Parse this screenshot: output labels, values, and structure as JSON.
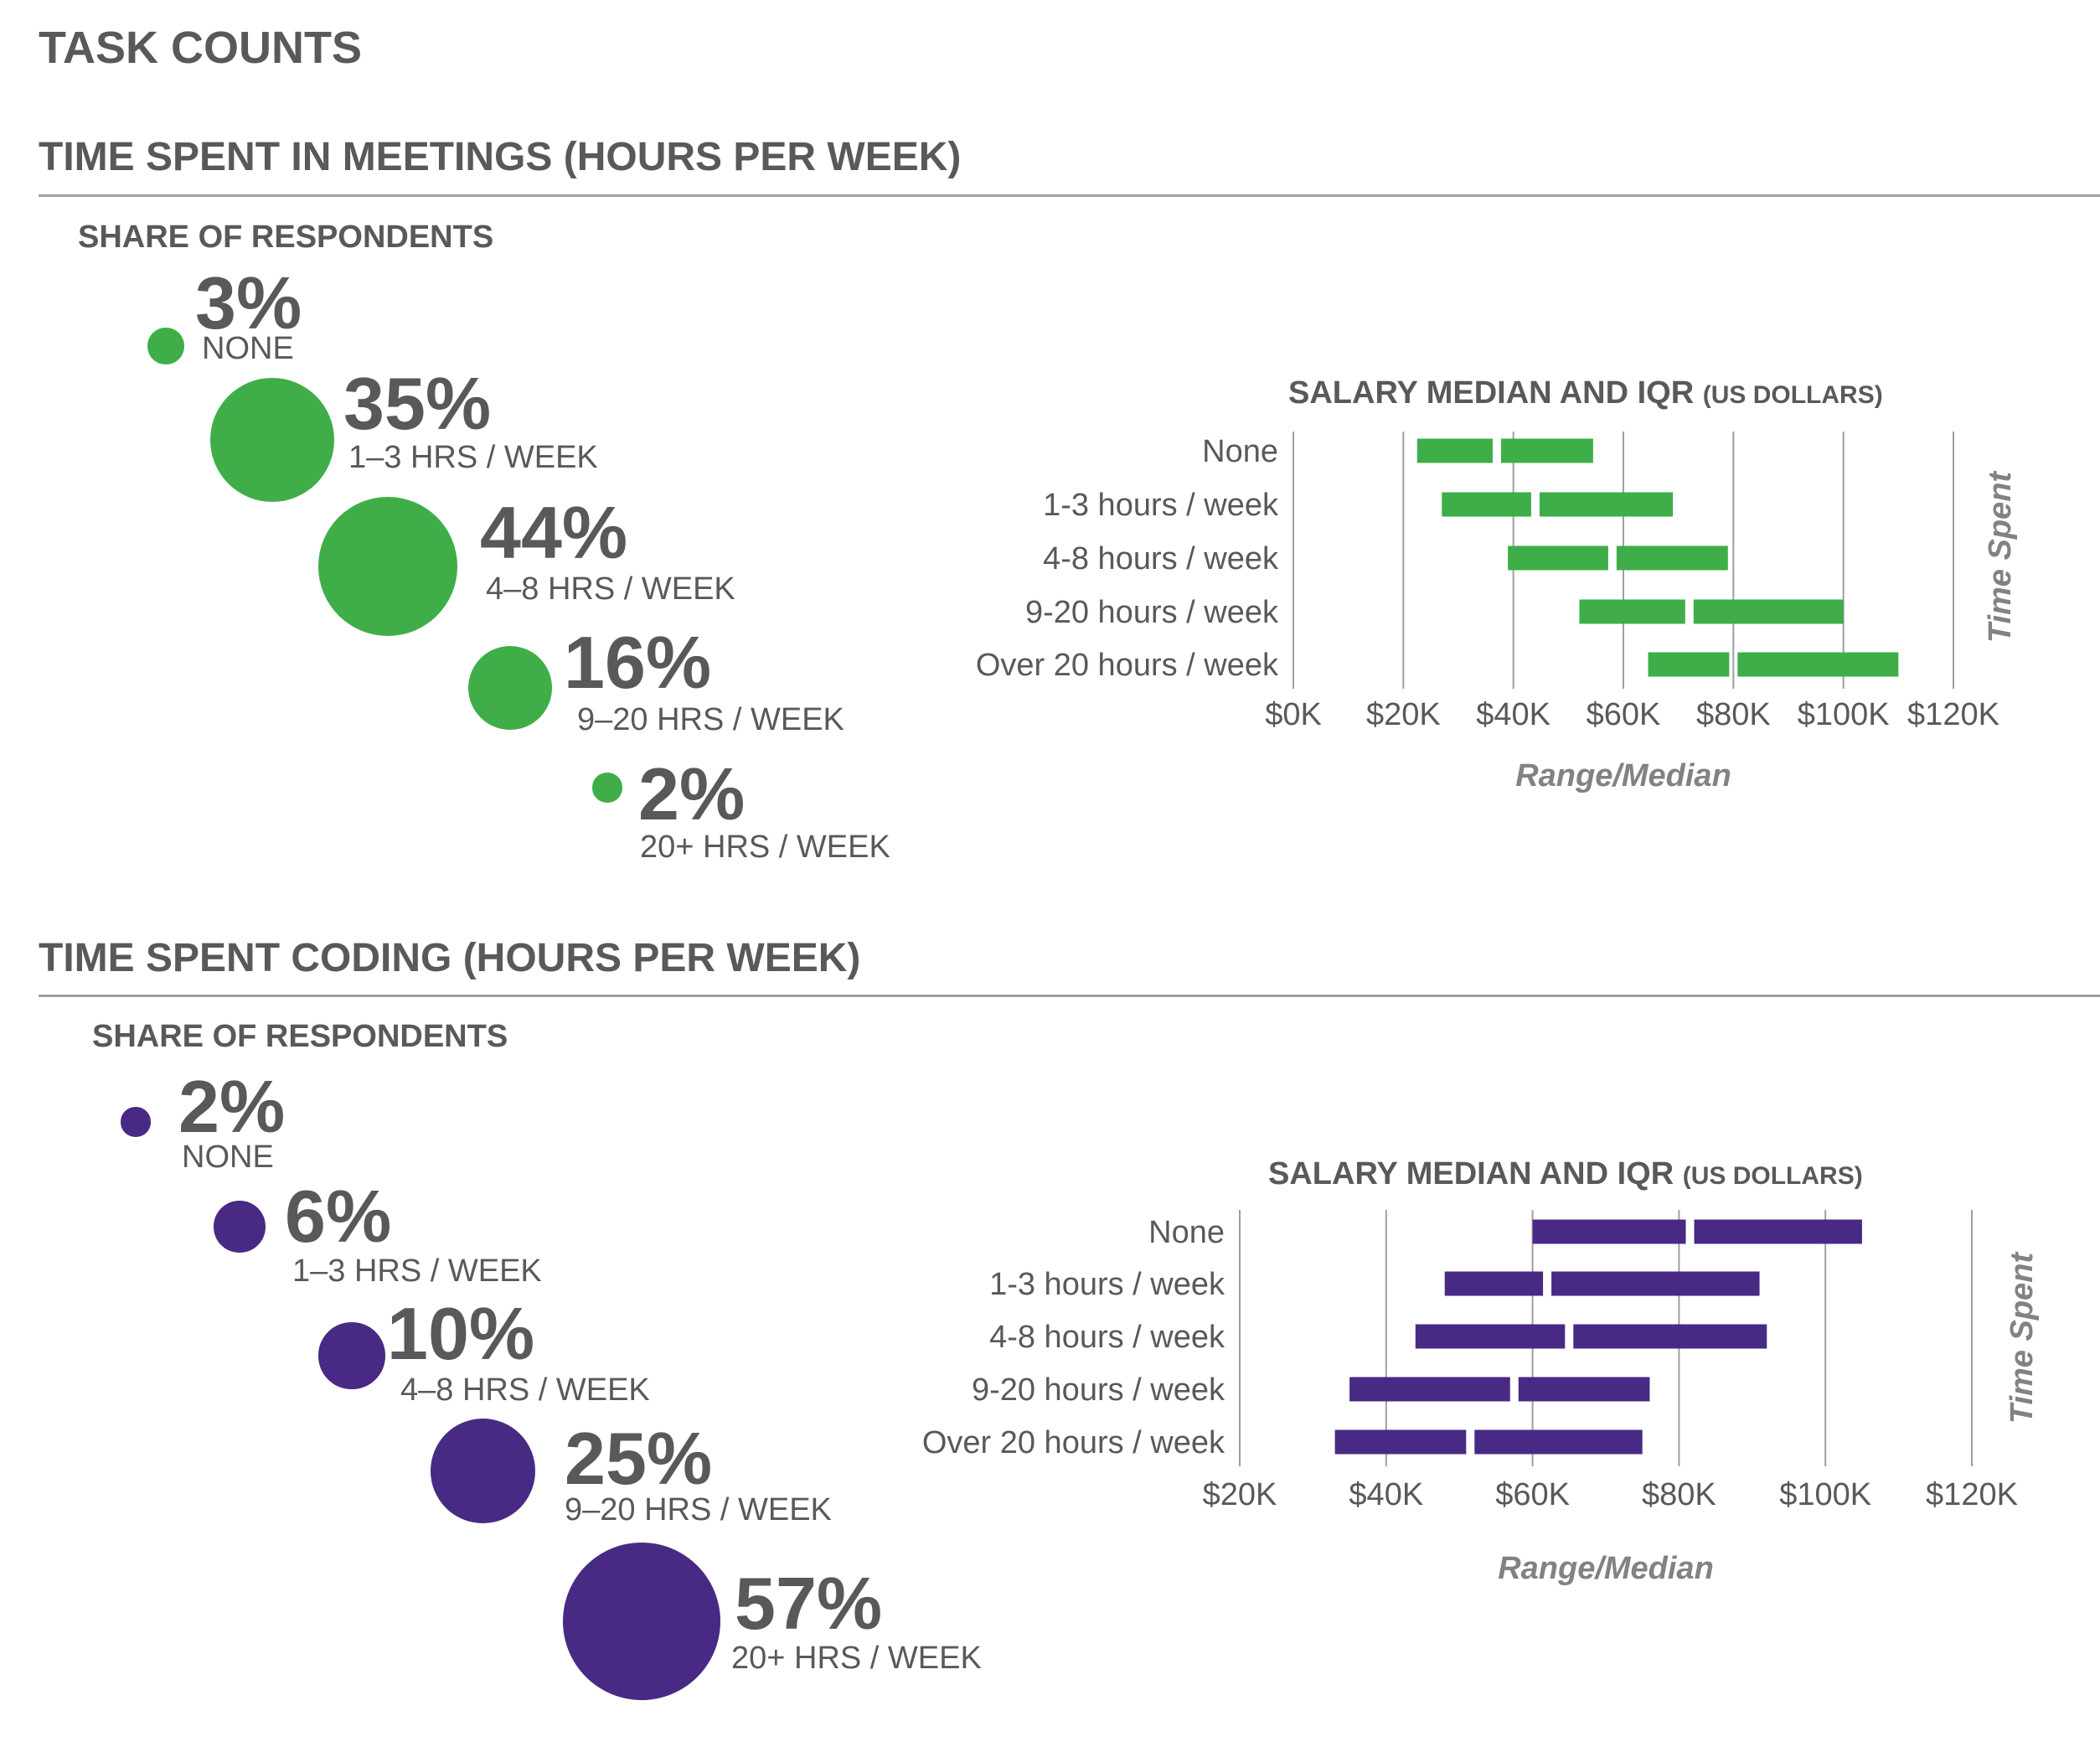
{
  "page_title": "TASK COUNTS",
  "colors": {
    "meetings": "#3fae49",
    "coding": "#482a84",
    "text": "#58595b",
    "grid": "#9d9fa2"
  },
  "sections": [
    {
      "title": "TIME SPENT IN MEETINGS (HOURS PER WEEK)",
      "share_label": "SHARE OF RESPONDENTS",
      "bubbles": [
        {
          "pct_value": 3,
          "pct_label": "3%",
          "category": "NONE"
        },
        {
          "pct_value": 35,
          "pct_label": "35%",
          "category": "1–3 HRS / WEEK"
        },
        {
          "pct_value": 44,
          "pct_label": "44%",
          "category": "4–8 HRS / WEEK"
        },
        {
          "pct_value": 16,
          "pct_label": "16%",
          "category": "9–20 HRS / WEEK"
        },
        {
          "pct_value": 2,
          "pct_label": "2%",
          "category": "20+ HRS / WEEK"
        }
      ]
    },
    {
      "title": "TIME SPENT CODING (HOURS PER WEEK)",
      "share_label": "SHARE OF RESPONDENTS",
      "bubbles": [
        {
          "pct_value": 2,
          "pct_label": "2%",
          "category": "NONE"
        },
        {
          "pct_value": 6,
          "pct_label": "6%",
          "category": "1–3 HRS / WEEK"
        },
        {
          "pct_value": 10,
          "pct_label": "10%",
          "category": "4–8 HRS / WEEK"
        },
        {
          "pct_value": 25,
          "pct_label": "25%",
          "category": "9–20 HRS / WEEK"
        },
        {
          "pct_value": 57,
          "pct_label": "57%",
          "category": "20+ HRS / WEEK"
        }
      ]
    }
  ],
  "chart_data": [
    {
      "type": "bar",
      "subtype": "range-median",
      "title": "SALARY MEDIAN AND IQR",
      "title_suffix": "(US DOLLARS)",
      "xlabel": "Range/Median",
      "ylabel": "Time Spent",
      "xlim": [
        0,
        120000
      ],
      "x_ticks": [
        0,
        20000,
        40000,
        60000,
        80000,
        100000,
        120000
      ],
      "x_tick_labels": [
        "$0K",
        "$20K",
        "$40K",
        "$60K",
        "$80K",
        "$100K",
        "$120K"
      ],
      "grid": true,
      "categories": [
        "None",
        "1-3 hours / week",
        "4-8 hours / week",
        "9-20 hours / week",
        "Over 20 hours / week"
      ],
      "q1": [
        22500,
        27000,
        39000,
        52000,
        64500
      ],
      "median": [
        37000,
        44000,
        58000,
        72000,
        80000
      ],
      "q3": [
        54500,
        69000,
        79000,
        100000,
        110000
      ]
    },
    {
      "type": "bar",
      "subtype": "range-median",
      "title": "SALARY MEDIAN AND IQR",
      "title_suffix": "(US DOLLARS)",
      "xlabel": "Range/Median",
      "ylabel": "Time Spent",
      "xlim": [
        20000,
        120000
      ],
      "x_ticks": [
        20000,
        40000,
        60000,
        80000,
        100000,
        120000
      ],
      "x_tick_labels": [
        "$20K",
        "$40K",
        "$60K",
        "$80K",
        "$100K",
        "$120K"
      ],
      "grid": true,
      "categories": [
        "None",
        "1-3 hours / week",
        "4-8 hours / week",
        "9-20 hours / week",
        "Over 20 hours / week"
      ],
      "q1": [
        60000,
        48000,
        44000,
        35000,
        33000
      ],
      "median": [
        81500,
        62000,
        65000,
        57500,
        51500
      ],
      "q3": [
        105000,
        91000,
        92000,
        76000,
        75000
      ]
    }
  ]
}
